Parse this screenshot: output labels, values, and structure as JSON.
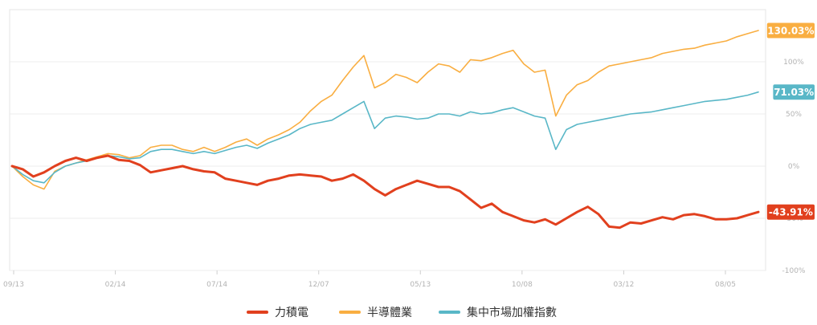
{
  "chart_data": {
    "type": "line",
    "x_ticks": [
      "09/13",
      "02/14",
      "07/14",
      "12/07",
      "05/13",
      "10/08",
      "03/12",
      "08/05"
    ],
    "y_ticks": [
      "100%",
      "50%",
      "0%",
      "-50%",
      "-100%"
    ],
    "ylim": [
      -100,
      150
    ],
    "grid": true,
    "legend_position": "bottom",
    "series": [
      {
        "name": "力積電",
        "color": "#e1401e",
        "end_label": "-43.91%",
        "values": [
          0,
          -3,
          -10,
          -6,
          0,
          5,
          8,
          5,
          8,
          10,
          6,
          5,
          1,
          -6,
          -4,
          -2,
          0,
          -3,
          -5,
          -6,
          -12,
          -14,
          -16,
          -18,
          -14,
          -12,
          -9,
          -8,
          -9,
          -10,
          -14,
          -12,
          -8,
          -14,
          -22,
          -28,
          -22,
          -18,
          -14,
          -17,
          -20,
          -20,
          -24,
          -32,
          -40,
          -36,
          -44,
          -48,
          -52,
          -54,
          -51,
          -56,
          -50,
          -44,
          -39,
          -46,
          -58,
          -59,
          -54,
          -55,
          -52,
          -49,
          -51,
          -47,
          -46,
          -48,
          -51,
          -51,
          -50,
          -47,
          -44
        ]
      },
      {
        "name": "半導體業",
        "color": "#f9ae41",
        "end_label": "130.03%",
        "values": [
          0,
          -10,
          -18,
          -22,
          -5,
          0,
          3,
          6,
          9,
          12,
          11,
          8,
          10,
          18,
          20,
          20,
          16,
          14,
          18,
          14,
          18,
          23,
          26,
          20,
          26,
          30,
          35,
          42,
          53,
          62,
          68,
          82,
          95,
          106,
          75,
          80,
          88,
          85,
          80,
          90,
          98,
          96,
          90,
          102,
          101,
          104,
          108,
          111,
          98,
          90,
          92,
          48,
          68,
          78,
          82,
          90,
          96,
          98,
          100,
          102,
          104,
          108,
          110,
          112,
          113,
          116,
          118,
          120,
          124,
          127,
          130
        ]
      },
      {
        "name": "集中市場加權指數",
        "color": "#59b7c7",
        "end_label": "71.03%",
        "values": [
          0,
          -8,
          -14,
          -16,
          -6,
          0,
          3,
          5,
          8,
          10,
          9,
          7,
          8,
          14,
          16,
          16,
          14,
          12,
          14,
          12,
          15,
          18,
          20,
          17,
          22,
          26,
          30,
          36,
          40,
          42,
          44,
          50,
          56,
          62,
          36,
          46,
          48,
          47,
          45,
          46,
          50,
          50,
          48,
          52,
          50,
          51,
          54,
          56,
          52,
          48,
          46,
          16,
          35,
          40,
          42,
          44,
          46,
          48,
          50,
          51,
          52,
          54,
          56,
          58,
          60,
          62,
          63,
          64,
          66,
          68,
          71
        ]
      }
    ]
  }
}
